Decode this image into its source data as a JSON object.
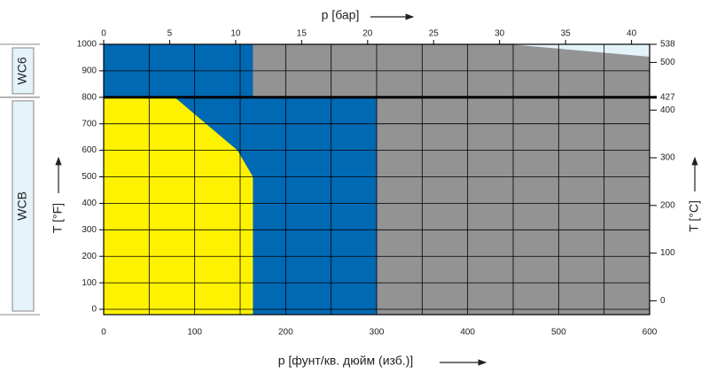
{
  "chart_data": {
    "type": "area",
    "xlabel": "p [фунт/кв. дюйм (изб.)]",
    "x2label": "p [бар]",
    "ylabel": "T [°F]",
    "y2label": "T [°C]",
    "xlim": [
      0,
      600
    ],
    "xticks": [
      0,
      100,
      200,
      300,
      400,
      500,
      600
    ],
    "xminorticks": [
      50,
      150,
      250,
      350,
      450,
      550
    ],
    "x2lim": [
      0,
      41.37
    ],
    "x2ticks": [
      0,
      5,
      10,
      15,
      20,
      25,
      30,
      35,
      40
    ],
    "ylim": [
      -20,
      1000
    ],
    "yticks": [
      0,
      100,
      200,
      300,
      400,
      500,
      600,
      700,
      800,
      900,
      1000
    ],
    "y2lim": [
      -29,
      538
    ],
    "y2ticks": [
      0,
      100,
      200,
      300,
      400,
      427,
      500,
      538
    ],
    "grid": true,
    "regions": [
      {
        "color": "#939393",
        "points": [
          [
            0,
            -20
          ],
          [
            0,
            1000
          ],
          [
            600,
            1000
          ],
          [
            600,
            -20
          ]
        ]
      },
      {
        "color": "#0069b4",
        "points": [
          [
            0,
            -20
          ],
          [
            0,
            800
          ],
          [
            300,
            800
          ],
          [
            300,
            -20
          ]
        ]
      },
      {
        "color": "#fff200",
        "points": [
          [
            0,
            -20
          ],
          [
            0,
            800
          ],
          [
            78,
            800
          ],
          [
            147,
            600
          ],
          [
            164,
            500
          ],
          [
            164,
            -20
          ]
        ]
      },
      {
        "color": "#0069b4",
        "points": [
          [
            0,
            800
          ],
          [
            0,
            1000
          ],
          [
            164,
            1000
          ],
          [
            164,
            800
          ]
        ]
      },
      {
        "color": "#e4f2fa",
        "points": [
          [
            446,
            1000
          ],
          [
            600,
            1000
          ],
          [
            600,
            953
          ]
        ]
      }
    ],
    "bands": [
      {
        "label": "WC6",
        "range": [
          800,
          1000
        ]
      },
      {
        "label": "WCB",
        "range": [
          -20,
          800
        ]
      }
    ]
  }
}
